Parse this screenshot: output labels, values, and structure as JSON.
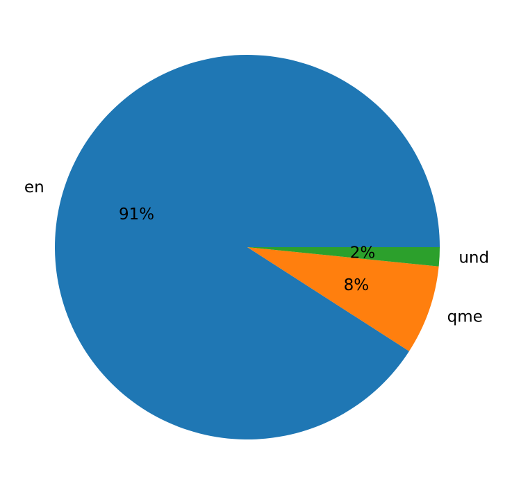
{
  "chart_data": {
    "type": "pie",
    "title": "",
    "categories": [
      "en",
      "qme",
      "und"
    ],
    "values": [
      90.9,
      7.5,
      1.6
    ],
    "pct_labels": [
      "91%",
      "8%",
      "2%"
    ],
    "colors": [
      "#1f77b4",
      "#ff7f0e",
      "#2ca02c"
    ],
    "start_angle_deg": 0,
    "direction": "counterclockwise",
    "legend": "none"
  }
}
